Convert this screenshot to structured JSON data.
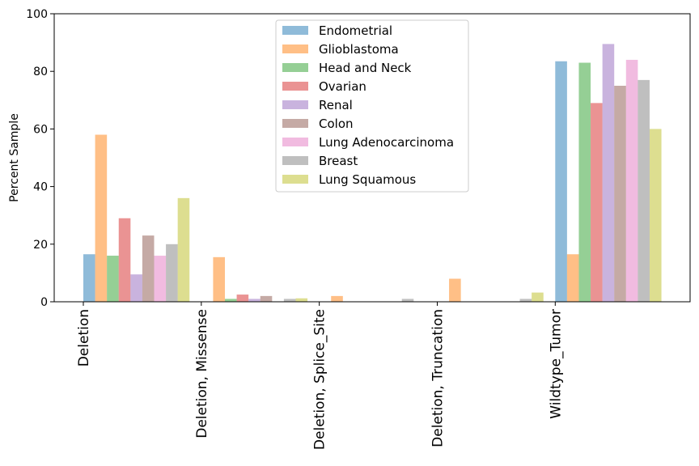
{
  "chart_data": {
    "type": "bar",
    "title": "",
    "xlabel": "",
    "ylabel": "Percent Sample",
    "ylim": [
      0,
      100
    ],
    "yticks": [
      0,
      20,
      40,
      60,
      80,
      100
    ],
    "grid": false,
    "legend_position": "top-center",
    "categories": [
      "Deletion",
      "Deletion, Missense",
      "Deletion, Splice_Site",
      "Deletion, Truncation",
      "Wildtype_Tumor"
    ],
    "series": [
      {
        "name": "Endometrial",
        "color": "#1f77b4",
        "values": [
          16.5,
          0,
          0,
          0,
          83.5
        ]
      },
      {
        "name": "Glioblastoma",
        "color": "#ff7f0e",
        "values": [
          58,
          15.5,
          2,
          8,
          16.5
        ]
      },
      {
        "name": "Head and Neck",
        "color": "#2ca02c",
        "values": [
          16,
          1,
          0,
          0,
          83
        ]
      },
      {
        "name": "Ovarian",
        "color": "#d62728",
        "values": [
          29,
          2.5,
          0,
          0,
          69
        ]
      },
      {
        "name": "Renal",
        "color": "#9467bd",
        "values": [
          9.5,
          1,
          0,
          0,
          89.5
        ]
      },
      {
        "name": "Colon",
        "color": "#8c564b",
        "values": [
          23,
          2,
          0,
          0,
          75
        ]
      },
      {
        "name": "Lung Adenocarcinoma",
        "color": "#e377c2",
        "values": [
          16,
          0,
          0,
          0,
          84
        ]
      },
      {
        "name": "Breast",
        "color": "#7f7f7f",
        "values": [
          20,
          1,
          1,
          1,
          77
        ]
      },
      {
        "name": "Lung Squamous",
        "color": "#bcbd22",
        "values": [
          36,
          1.2,
          0,
          3.2,
          60
        ]
      }
    ]
  }
}
